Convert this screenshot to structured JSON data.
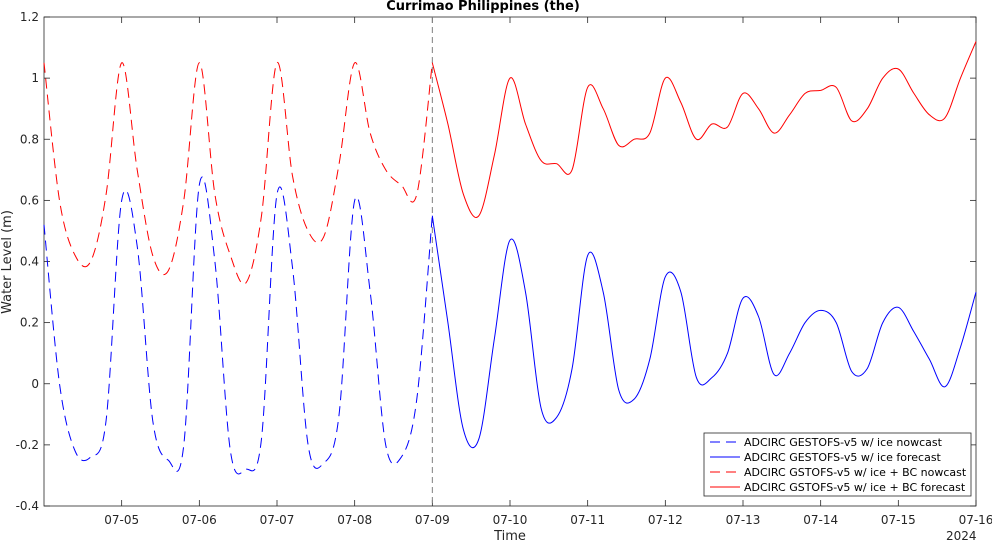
{
  "chart_data": {
    "type": "line",
    "title": "Currimao Philippines (the)",
    "xlabel": "Time",
    "ylabel": "Water Level (m)",
    "year_label": "2024",
    "xlim": [
      "07-04",
      "07-16"
    ],
    "ylim": [
      -0.4,
      1.2
    ],
    "x_ticks": [
      "07-05",
      "07-06",
      "07-07",
      "07-08",
      "07-09",
      "07-10",
      "07-11",
      "07-12",
      "07-13",
      "07-14",
      "07-15",
      "07-16"
    ],
    "y_ticks": [
      "-0.4",
      "-0.2",
      "0",
      "0.2",
      "0.4",
      "0.6",
      "0.8",
      "1",
      "1.2"
    ],
    "nowcast_forecast_divider": "07-09",
    "legend_position": "bottom-right",
    "colors": {
      "blue": "#0000ff",
      "red": "#ff0000",
      "divider": "#7f7f7f"
    },
    "series": [
      {
        "name": "ADCIRC GESTOFS-v5 w/ ice nowcast",
        "color": "#0000ff",
        "style": "dashed",
        "x": [
          "07-04 00:00",
          "07-04 04:48",
          "07-04 09:36",
          "07-04 14:24",
          "07-04 19:12",
          "07-05 00:00",
          "07-05 04:48",
          "07-05 09:36",
          "07-05 14:24",
          "07-05 19:12",
          "07-06 00:00",
          "07-06 04:48",
          "07-06 09:36",
          "07-06 14:24",
          "07-06 19:12",
          "07-07 00:00",
          "07-07 04:48",
          "07-07 09:36",
          "07-07 14:24",
          "07-07 19:12",
          "07-08 00:00",
          "07-08 04:48",
          "07-08 09:36",
          "07-08 14:24",
          "07-08 19:12",
          "07-09 00:00"
        ],
        "y": [
          0.52,
          0.0,
          -0.22,
          -0.24,
          -0.12,
          0.6,
          0.45,
          -0.12,
          -0.25,
          -0.2,
          0.65,
          0.4,
          -0.22,
          -0.28,
          -0.18,
          0.62,
          0.38,
          -0.2,
          -0.26,
          -0.1,
          0.6,
          0.3,
          -0.2,
          -0.24,
          -0.05,
          0.55
        ]
      },
      {
        "name": "ADCIRC GESTOFS-v5 w/ ice forecast",
        "color": "#0000ff",
        "style": "solid",
        "x": [
          "07-09 00:00",
          "07-09 04:48",
          "07-09 09:36",
          "07-09 14:24",
          "07-09 19:12",
          "07-10 00:00",
          "07-10 04:48",
          "07-10 09:36",
          "07-10 14:24",
          "07-10 19:12",
          "07-11 00:00",
          "07-11 04:48",
          "07-11 09:36",
          "07-11 14:24",
          "07-11 19:12",
          "07-12 00:00",
          "07-12 04:48",
          "07-12 09:36",
          "07-12 14:24",
          "07-12 19:12",
          "07-13 00:00",
          "07-13 04:48",
          "07-13 09:36",
          "07-13 14:24",
          "07-13 19:12",
          "07-14 00:00",
          "07-14 04:48",
          "07-14 09:36",
          "07-14 14:24",
          "07-14 19:12",
          "07-15 00:00",
          "07-15 04:48",
          "07-15 09:36",
          "07-15 14:24",
          "07-15 19:12",
          "07-16 00:00"
        ],
        "y": [
          0.55,
          0.2,
          -0.15,
          -0.18,
          0.15,
          0.47,
          0.3,
          -0.08,
          -0.11,
          0.05,
          0.42,
          0.3,
          -0.02,
          -0.05,
          0.08,
          0.35,
          0.3,
          0.02,
          0.02,
          0.1,
          0.28,
          0.22,
          0.03,
          0.1,
          0.2,
          0.24,
          0.2,
          0.04,
          0.05,
          0.2,
          0.25,
          0.17,
          0.08,
          -0.01,
          0.12,
          0.3
        ]
      },
      {
        "name": "ADCIRC GSTOFS-v5 w/ ice + BC nowcast",
        "color": "#ff0000",
        "style": "dashed",
        "x": [
          "07-04 00:00",
          "07-04 04:48",
          "07-04 09:36",
          "07-04 14:24",
          "07-04 19:12",
          "07-05 00:00",
          "07-05 04:48",
          "07-05 09:36",
          "07-05 14:24",
          "07-05 19:12",
          "07-06 00:00",
          "07-06 04:48",
          "07-06 09:36",
          "07-06 14:24",
          "07-06 19:12",
          "07-07 00:00",
          "07-07 04:48",
          "07-07 09:36",
          "07-07 14:24",
          "07-07 19:12",
          "07-08 00:00",
          "07-08 04:48",
          "07-08 09:36",
          "07-08 14:24",
          "07-08 19:12",
          "07-09 00:00"
        ],
        "y": [
          1.05,
          0.6,
          0.42,
          0.4,
          0.62,
          1.05,
          0.7,
          0.42,
          0.37,
          0.6,
          1.05,
          0.62,
          0.42,
          0.33,
          0.55,
          1.05,
          0.68,
          0.5,
          0.48,
          0.72,
          1.05,
          0.82,
          0.7,
          0.65,
          0.62,
          1.05
        ]
      },
      {
        "name": "ADCIRC GSTOFS-v5 w/ ice + BC forecast",
        "color": "#ff0000",
        "style": "solid",
        "x": [
          "07-09 00:00",
          "07-09 04:48",
          "07-09 09:36",
          "07-09 14:24",
          "07-09 19:12",
          "07-10 00:00",
          "07-10 04:48",
          "07-10 09:36",
          "07-10 14:24",
          "07-10 19:12",
          "07-11 00:00",
          "07-11 04:48",
          "07-11 09:36",
          "07-11 14:24",
          "07-11 19:12",
          "07-12 00:00",
          "07-12 04:48",
          "07-12 09:36",
          "07-12 14:24",
          "07-12 19:12",
          "07-13 00:00",
          "07-13 04:48",
          "07-13 09:36",
          "07-13 14:24",
          "07-13 19:12",
          "07-14 00:00",
          "07-14 04:48",
          "07-14 09:36",
          "07-14 14:24",
          "07-14 19:12",
          "07-15 00:00",
          "07-15 04:48",
          "07-15 09:36",
          "07-15 14:24",
          "07-15 19:12",
          "07-16 00:00"
        ],
        "y": [
          1.05,
          0.85,
          0.62,
          0.55,
          0.75,
          1.0,
          0.85,
          0.73,
          0.72,
          0.7,
          0.97,
          0.9,
          0.78,
          0.8,
          0.82,
          1.0,
          0.92,
          0.8,
          0.85,
          0.84,
          0.95,
          0.9,
          0.82,
          0.88,
          0.95,
          0.96,
          0.97,
          0.86,
          0.9,
          1.0,
          1.03,
          0.95,
          0.88,
          0.87,
          1.0,
          1.12
        ]
      }
    ]
  }
}
